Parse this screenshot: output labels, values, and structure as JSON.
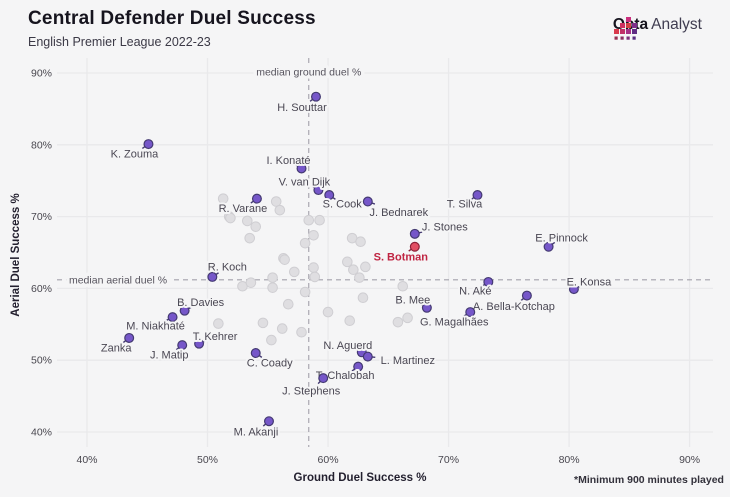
{
  "header": {
    "title": "Central Defender Duel Success",
    "subtitle": "English Premier League 2022-23"
  },
  "brand": {
    "name_bold": "Opta",
    "name_regular": "Analyst"
  },
  "footnote": "*Minimum 900 minutes played",
  "colors": {
    "background": "#f5f5f6",
    "gridline": "#e9e9eb",
    "median_line": "#a3a1ab",
    "point": "#7657c9",
    "point_stroke": "#443a72",
    "highlight_point": "#e14f63",
    "highlight_stroke": "#8c2138",
    "highlight_label": "#c02442",
    "other_point": "#dfdee1",
    "other_stroke": "#cfced2"
  },
  "chart_data": {
    "type": "scatter",
    "title": "Central Defender Duel Success",
    "subtitle": "English Premier League 2022-23",
    "xlabel": "Ground Duel Success %",
    "ylabel": "Aerial Duel Success %",
    "x_tick_labels": [
      "40%",
      "50%",
      "60%",
      "70%",
      "80%",
      "90%"
    ],
    "y_tick_labels": [
      "40%",
      "50%",
      "60%",
      "70%",
      "80%",
      "90%"
    ],
    "x_tick_values": [
      40,
      50,
      60,
      70,
      80,
      90
    ],
    "y_tick_values": [
      40,
      50,
      60,
      70,
      80,
      90
    ],
    "xlim": [
      37.5,
      92
    ],
    "ylim": [
      38,
      92
    ],
    "grid": true,
    "legend": "none",
    "medians": {
      "x": {
        "value": 58.4,
        "label": "median ground duel %"
      },
      "y": {
        "value": 61.2,
        "label": "median aerial duel %"
      }
    },
    "players": [
      {
        "name": "H. Souttar",
        "x": 59.0,
        "y": 86.7,
        "ox": -14,
        "oy": 11,
        "highlight": false
      },
      {
        "name": "K. Zouma",
        "x": 45.1,
        "y": 80.1,
        "ox": -14,
        "oy": 10,
        "highlight": false
      },
      {
        "name": "I. Konaté",
        "x": 57.8,
        "y": 76.7,
        "ox": -13,
        "oy": -8,
        "highlight": false
      },
      {
        "name": "V. van Dijk",
        "x": 59.2,
        "y": 73.7,
        "ox": -14,
        "oy": -8,
        "highlight": false
      },
      {
        "name": "S. Cook",
        "x": 60.1,
        "y": 73.0,
        "ox": 13,
        "oy": 9,
        "highlight": false
      },
      {
        "name": "R. Varane",
        "x": 54.1,
        "y": 72.5,
        "ox": -14,
        "oy": 10,
        "highlight": false
      },
      {
        "name": "J. Bednarek",
        "x": 63.3,
        "y": 72.1,
        "ox": 31,
        "oy": 11,
        "highlight": false
      },
      {
        "name": "T. Silva",
        "x": 72.4,
        "y": 73.0,
        "ox": -13,
        "oy": 9,
        "highlight": false
      },
      {
        "name": "J. Stones",
        "x": 67.2,
        "y": 67.6,
        "ox": 30,
        "oy": -7,
        "highlight": false
      },
      {
        "name": "S. Botman",
        "x": 67.2,
        "y": 65.8,
        "ox": -14,
        "oy": 10,
        "highlight": true
      },
      {
        "name": "E. Pinnock",
        "x": 78.3,
        "y": 65.8,
        "ox": 13,
        "oy": -9,
        "highlight": false
      },
      {
        "name": "R. Koch",
        "x": 50.4,
        "y": 61.6,
        "ox": 15,
        "oy": -10,
        "highlight": false
      },
      {
        "name": "N. Aké",
        "x": 73.3,
        "y": 60.9,
        "ox": -13,
        "oy": 9,
        "highlight": false
      },
      {
        "name": "E. Konsa",
        "x": 80.4,
        "y": 59.9,
        "ox": 15,
        "oy": -7,
        "highlight": false
      },
      {
        "name": "A. Bella-Kotchap",
        "x": 76.5,
        "y": 59.0,
        "ox": -13,
        "oy": 11,
        "highlight": false
      },
      {
        "name": "B. Mee",
        "x": 68.2,
        "y": 57.3,
        "ox": -14,
        "oy": -8,
        "highlight": false
      },
      {
        "name": "G. Magalhães",
        "x": 71.8,
        "y": 56.7,
        "ox": -16,
        "oy": 10,
        "highlight": false
      },
      {
        "name": "B. Davies",
        "x": 48.1,
        "y": 56.9,
        "ox": 16,
        "oy": -8,
        "highlight": false
      },
      {
        "name": "M. Niakhaté",
        "x": 47.1,
        "y": 56.0,
        "ox": -17,
        "oy": 9,
        "highlight": false
      },
      {
        "name": "Zanka",
        "x": 43.5,
        "y": 53.1,
        "ox": -13,
        "oy": 10,
        "highlight": false
      },
      {
        "name": "J. Matip",
        "x": 47.9,
        "y": 52.1,
        "ox": -13,
        "oy": 10,
        "highlight": false
      },
      {
        "name": "T. Kehrer",
        "x": 49.3,
        "y": 52.3,
        "ox": 16,
        "oy": -7,
        "highlight": false
      },
      {
        "name": "C. Coady",
        "x": 54.0,
        "y": 51.0,
        "ox": 14,
        "oy": 10,
        "highlight": false
      },
      {
        "name": "N. Aguerd",
        "x": 62.8,
        "y": 51.1,
        "ox": -14,
        "oy": -7,
        "highlight": false
      },
      {
        "name": "L. Martinez",
        "x": 63.3,
        "y": 50.5,
        "ox": 40,
        "oy": 4,
        "highlight": false
      },
      {
        "name": "T. Chalobah",
        "x": 62.5,
        "y": 49.1,
        "ox": -13,
        "oy": 9,
        "highlight": false
      },
      {
        "name": "J. Stephens",
        "x": 59.6,
        "y": 47.5,
        "ox": -12,
        "oy": 13,
        "highlight": false
      },
      {
        "name": "M. Akanji",
        "x": 55.1,
        "y": 41.5,
        "ox": -13,
        "oy": 11,
        "highlight": false
      }
    ],
    "unlabeled": [
      [
        51.3,
        72.5
      ],
      [
        51.8,
        70.0
      ],
      [
        55.7,
        72.1
      ],
      [
        56.0,
        70.9
      ],
      [
        51.9,
        69.8
      ],
      [
        53.3,
        69.4
      ],
      [
        54.0,
        68.6
      ],
      [
        53.5,
        67.0
      ],
      [
        58.4,
        69.5
      ],
      [
        59.3,
        69.5
      ],
      [
        58.8,
        67.4
      ],
      [
        58.1,
        66.3
      ],
      [
        62.0,
        67.0
      ],
      [
        62.7,
        66.5
      ],
      [
        56.3,
        64.2
      ],
      [
        57.2,
        62.3
      ],
      [
        58.8,
        62.9
      ],
      [
        58.9,
        61.6
      ],
      [
        55.4,
        61.5
      ],
      [
        52.9,
        60.3
      ],
      [
        53.6,
        60.8
      ],
      [
        58.1,
        59.5
      ],
      [
        56.7,
        57.8
      ],
      [
        60.0,
        56.7
      ],
      [
        54.6,
        55.2
      ],
      [
        56.2,
        54.4
      ],
      [
        55.3,
        52.8
      ],
      [
        57.8,
        53.9
      ],
      [
        61.8,
        55.5
      ],
      [
        62.9,
        58.7
      ],
      [
        62.1,
        62.6
      ],
      [
        61.6,
        63.7
      ],
      [
        62.6,
        61.5
      ],
      [
        63.1,
        63.0
      ],
      [
        66.2,
        60.3
      ],
      [
        66.6,
        55.9
      ],
      [
        65.8,
        55.3
      ],
      [
        50.9,
        55.1
      ],
      [
        56.4,
        64.0
      ],
      [
        55.4,
        60.1
      ]
    ]
  }
}
